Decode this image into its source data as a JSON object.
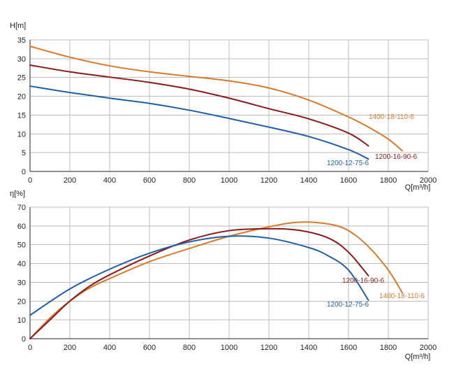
{
  "chart_data": [
    {
      "type": "line",
      "title": "",
      "xlabel": "Q[m³/h]",
      "ylabel": "H[m]",
      "xlim": [
        0,
        2000
      ],
      "ylim": [
        0,
        35
      ],
      "xticks": [
        0,
        200,
        400,
        600,
        800,
        1000,
        1200,
        1400,
        1600,
        1800,
        2000
      ],
      "yticks": [
        0,
        5,
        10,
        15,
        20,
        25,
        30,
        35
      ],
      "grid": true,
      "series": [
        {
          "name": "1400-18-110-6",
          "color": "#d97a2b",
          "x": [
            0,
            200,
            400,
            600,
            800,
            1000,
            1200,
            1400,
            1600,
            1700,
            1800,
            1870
          ],
          "y": [
            33.3,
            30.4,
            28.1,
            26.5,
            25.3,
            24.1,
            22.2,
            19.0,
            14.5,
            11.8,
            8.6,
            5.5
          ]
        },
        {
          "name": "1200-16-90-6",
          "color": "#8b1a1a",
          "x": [
            0,
            200,
            400,
            600,
            800,
            1000,
            1200,
            1400,
            1600,
            1700
          ],
          "y": [
            28.3,
            26.5,
            25.1,
            23.7,
            21.9,
            19.5,
            16.7,
            14.0,
            10.2,
            6.8
          ]
        },
        {
          "name": "1200-12-75-6",
          "color": "#1f5fa8",
          "x": [
            0,
            200,
            400,
            600,
            800,
            1000,
            1200,
            1400,
            1600,
            1700
          ],
          "y": [
            22.7,
            21.0,
            19.5,
            18.1,
            16.3,
            14.1,
            11.8,
            9.3,
            5.8,
            3.3
          ]
        }
      ]
    },
    {
      "type": "line",
      "title": "",
      "xlabel": "Q[m³/h]",
      "ylabel": "η[%]",
      "xlim": [
        0,
        2000
      ],
      "ylim": [
        0,
        70
      ],
      "xticks": [
        0,
        200,
        400,
        600,
        800,
        1000,
        1200,
        1400,
        1600,
        1800,
        2000
      ],
      "yticks": [
        0,
        10,
        20,
        30,
        40,
        50,
        60,
        70
      ],
      "grid": true,
      "series": [
        {
          "name": "1400-18-110-6",
          "color": "#d97a2b",
          "x": [
            0,
            100,
            200,
            300,
            400,
            600,
            800,
            1000,
            1200,
            1350,
            1500,
            1600,
            1700,
            1800,
            1870
          ],
          "y": [
            0,
            11,
            20,
            27,
            32,
            41,
            48,
            54.5,
            59.5,
            62,
            61,
            57.5,
            49,
            36.5,
            24.5
          ]
        },
        {
          "name": "1200-16-90-6",
          "color": "#8b1a1a",
          "x": [
            0,
            100,
            200,
            300,
            400,
            600,
            800,
            1000,
            1200,
            1350,
            1500,
            1600,
            1700
          ],
          "y": [
            0,
            10,
            20,
            28,
            34,
            44,
            52.5,
            57.5,
            58.5,
            57.7,
            53.5,
            46,
            33.5
          ]
        },
        {
          "name": "1200-12-75-6",
          "color": "#1f5fa8",
          "x": [
            0,
            200,
            400,
            600,
            800,
            1000,
            1200,
            1400,
            1500,
            1600,
            1700
          ],
          "y": [
            12.5,
            26.5,
            37,
            45.5,
            51.5,
            54.5,
            53.5,
            48.5,
            44,
            36.5,
            20.5
          ]
        }
      ]
    }
  ]
}
